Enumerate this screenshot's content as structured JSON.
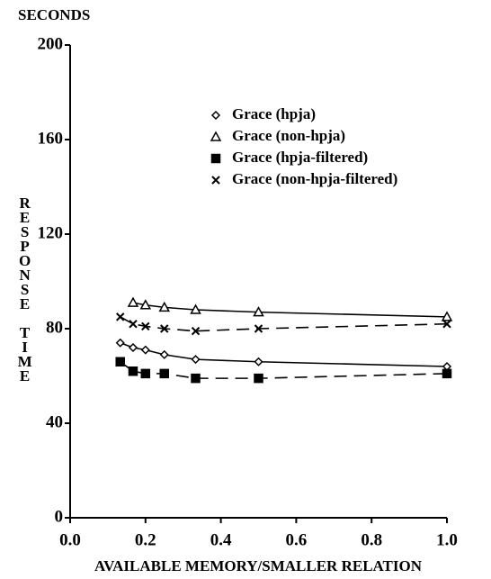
{
  "chart_data": {
    "type": "line",
    "y_unit": "SECONDS",
    "y_label": "RESPONSE TIME",
    "x_label": "AVAILABLE MEMORY/SMALLER RELATION",
    "x": [
      0.133,
      0.167,
      0.2,
      0.25,
      0.333,
      0.5,
      1.0
    ],
    "series": [
      {
        "name": "Grace (hpja)",
        "color": "#000000",
        "marker": "diamond",
        "dash": false,
        "values": [
          74,
          72,
          71,
          69,
          67,
          66,
          64
        ]
      },
      {
        "name": "Grace (non-hpja)",
        "color": "#000000",
        "marker": "triangle",
        "dash": false,
        "values": [
          null,
          91,
          90,
          89,
          88,
          87,
          85
        ]
      },
      {
        "name": "Grace (hpja-filtered)",
        "color": "#000000",
        "marker": "square",
        "dash": true,
        "values": [
          66,
          62,
          61,
          61,
          59,
          59,
          61
        ]
      },
      {
        "name": "Grace (non-hpja-filtered)",
        "color": "#000000",
        "marker": "cross",
        "dash": true,
        "values": [
          85,
          82,
          81,
          80,
          79,
          80,
          82
        ]
      }
    ],
    "xlim": [
      0,
      1.0
    ],
    "ylim": [
      0,
      200
    ],
    "xticks": [
      {
        "value": 0,
        "label": "0.0"
      },
      0.2,
      0.4,
      0.6,
      0.8,
      {
        "value": 1.0,
        "label": "1.0"
      }
    ],
    "yticks": [
      0,
      40,
      80,
      120,
      160,
      200
    ],
    "grid": false,
    "legend": "upper right"
  }
}
